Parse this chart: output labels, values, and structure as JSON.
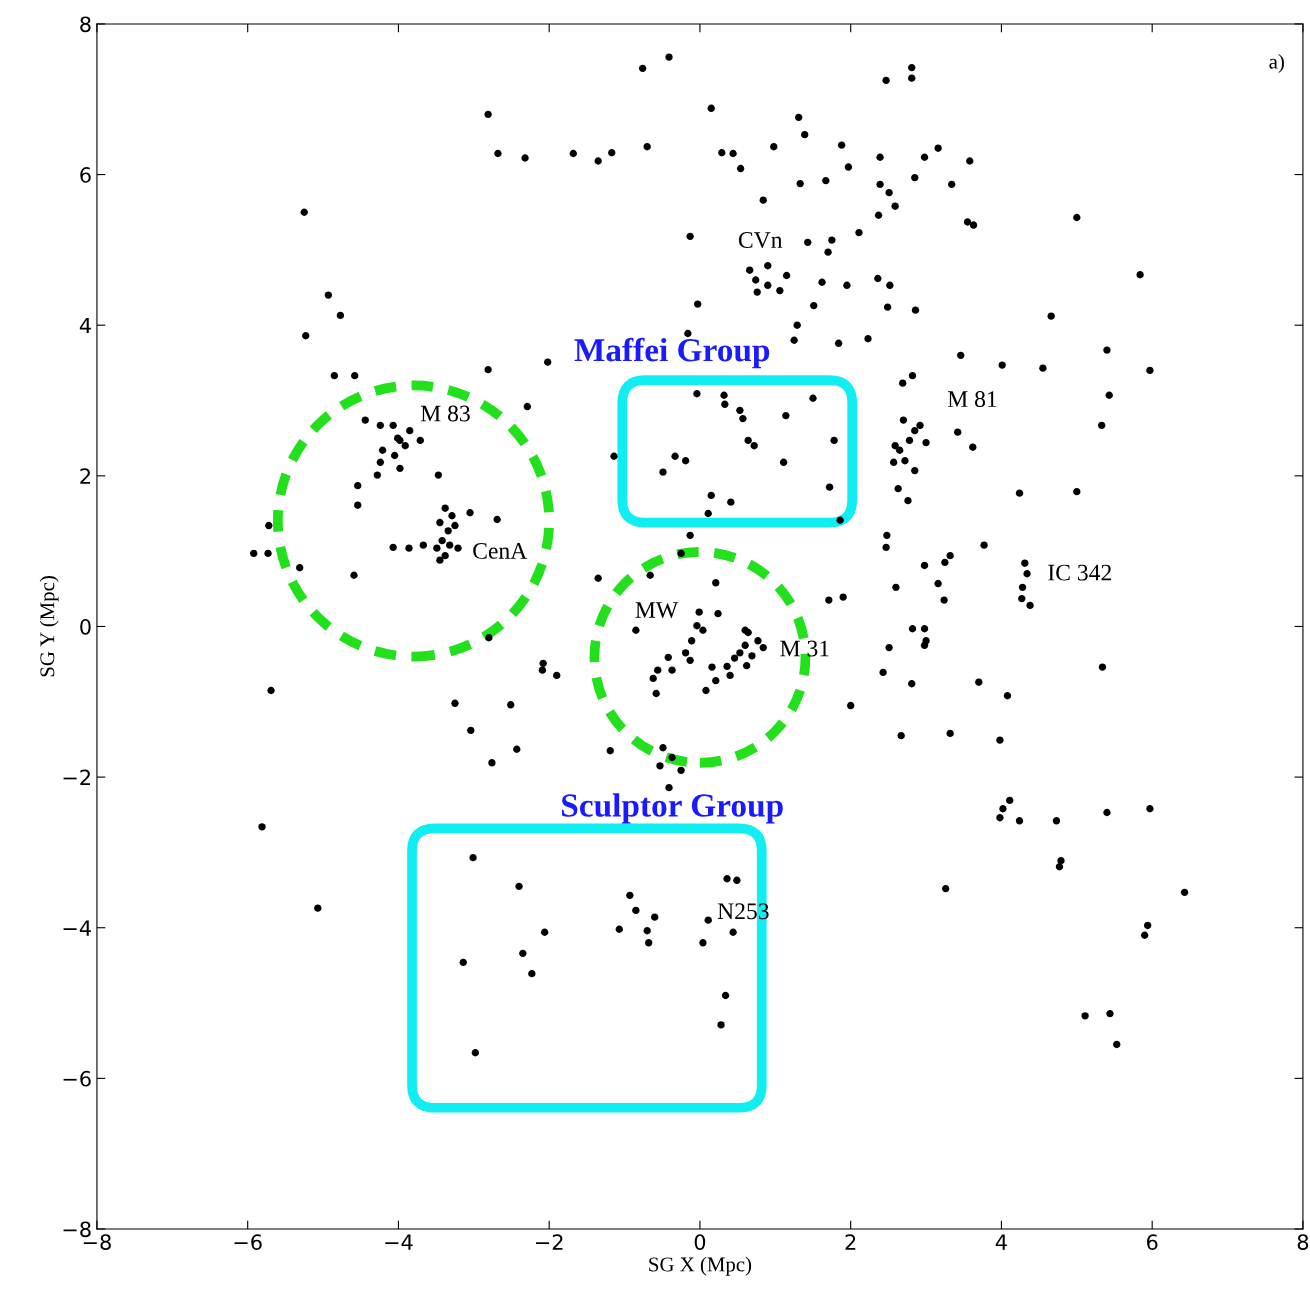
{
  "chart_data": {
    "type": "scatter",
    "xlabel": "SG X (Mpc)",
    "ylabel": "SG Y (Mpc)",
    "xlim": [
      -8,
      8
    ],
    "ylim": [
      -8,
      8
    ],
    "xticks": [
      {
        "value": -8,
        "label": "−8"
      },
      {
        "value": -6,
        "label": "−6"
      },
      {
        "value": -4,
        "label": "−4"
      },
      {
        "value": -2,
        "label": "−2"
      },
      0,
      2,
      4,
      6,
      8
    ],
    "yticks": [
      {
        "value": -8,
        "label": "−8"
      },
      {
        "value": -6,
        "label": "−6"
      },
      {
        "value": -4,
        "label": "−4"
      },
      {
        "value": -2,
        "label": "−2"
      },
      0,
      2,
      4,
      6,
      8
    ],
    "grid": false,
    "legend": false,
    "marker": "circle",
    "series": [
      {
        "color": "#000000",
        "x": [
          -0.76,
          -0.41,
          2.81,
          2.81,
          2.47,
          -2.81,
          -2.68,
          -2.32,
          -1.68,
          -1.35,
          -1.17,
          -0.7,
          0.15,
          0.29,
          0.44,
          0.54,
          0.84,
          1.31,
          1.39,
          0.98,
          1.33,
          1.67,
          1.88,
          1.97,
          2.39,
          2.39,
          2.51,
          2.85,
          2.59,
          2.37,
          2.11,
          2.98,
          3.16,
          3.34,
          3.58,
          3.55,
          3.63,
          5.0,
          5.84,
          -5.25,
          -4.93,
          -4.77,
          -5.23,
          -4.85,
          -4.58,
          -0.13,
          -0.03,
          -0.16,
          0.66,
          0.74,
          0.9,
          0.9,
          0.76,
          1.06,
          1.15,
          1.43,
          1.75,
          1.7,
          1.62,
          1.95,
          2.36,
          2.52,
          1.51,
          1.29,
          1.25,
          1.84,
          2.23,
          2.49,
          2.86,
          4.66,
          4.55,
          5.4,
          5.43,
          5.97,
          3.46,
          4.01,
          5.33,
          2.82,
          2.69,
          2.7,
          2.78,
          2.65,
          2.85,
          2.59,
          2.92,
          3.0,
          2.72,
          2.85,
          2.63,
          2.76,
          3.42,
          3.62,
          4.24,
          5.0,
          2.57,
          -0.04,
          0.32,
          0.33,
          0.53,
          0.57,
          1.14,
          1.5,
          0.64,
          0.72,
          1.78,
          1.11,
          1.72,
          -0.33,
          -0.19,
          -0.49,
          0.15,
          0.41,
          0.11,
          -1.14,
          1.86,
          -4.24,
          -4.07,
          -4.44,
          -3.98,
          -3.85,
          -3.91,
          -4.05,
          -4.21,
          -4.24,
          -3.98,
          -4.28,
          -4.01,
          -3.71,
          -2.29,
          -2.81,
          -2.02,
          -3.47,
          -4.54,
          -4.54,
          -3.05,
          -2.69,
          -3.38,
          -3.29,
          -3.45,
          -3.34,
          -3.25,
          -3.42,
          -3.32,
          -3.49,
          -3.21,
          -3.45,
          -3.38,
          -3.67,
          -3.86,
          -4.07,
          -5.72,
          -5.92,
          -5.73,
          -5.31,
          -4.59,
          -5.69,
          -2.8,
          -5.81,
          -5.07,
          -1.35,
          -0.85,
          -0.66,
          -0.25,
          -0.13,
          0.21,
          0.24,
          -0.01,
          -0.04,
          0.04,
          -0.11,
          -0.19,
          -0.13,
          -0.42,
          -0.56,
          -0.62,
          -0.58,
          -0.37,
          0.16,
          0.08,
          0.21,
          0.36,
          0.46,
          0.53,
          0.6,
          0.64,
          0.69,
          0.77,
          0.84,
          0.62,
          0.4,
          0.6,
          -0.49,
          -0.37,
          -0.53,
          -0.25,
          -0.41,
          -1.19,
          -2.08,
          -1.9,
          -2.09,
          -3.25,
          -3.04,
          -2.51,
          -2.43,
          -2.76,
          1.71,
          1.9,
          2.0,
          2.47,
          2.48,
          2.6,
          2.98,
          3.16,
          3.25,
          3.32,
          3.24,
          2.82,
          2.98,
          3.0,
          2.98,
          2.51,
          2.43,
          2.81,
          2.67,
          3.32,
          3.7,
          3.77,
          4.08,
          3.98,
          5.34,
          4.31,
          4.34,
          4.28,
          4.27,
          4.38,
          4.02,
          4.11,
          3.98,
          4.24,
          4.73,
          4.79,
          4.77,
          5.4,
          5.97,
          6.43,
          3.26,
          5.94,
          5.9,
          5.11,
          5.44,
          5.53,
          -3.01,
          -2.4,
          -2.35,
          -2.23,
          -2.06,
          -3.14,
          -2.98,
          -0.93,
          -0.85,
          -0.6,
          -1.07,
          -0.7,
          -0.68,
          0.11,
          0.04,
          0.36,
          0.49,
          0.44,
          0.34,
          0.28
        ],
        "values": [
          7.41,
          7.56,
          7.42,
          7.28,
          7.25,
          6.8,
          6.28,
          6.22,
          6.28,
          6.18,
          6.29,
          6.37,
          6.88,
          6.29,
          6.28,
          6.08,
          5.66,
          6.76,
          6.53,
          6.37,
          5.88,
          5.92,
          6.39,
          6.1,
          6.23,
          5.87,
          5.76,
          5.96,
          5.58,
          5.46,
          5.23,
          6.23,
          6.35,
          5.87,
          6.18,
          5.37,
          5.33,
          5.43,
          4.67,
          5.5,
          4.4,
          4.13,
          3.86,
          3.33,
          3.33,
          5.18,
          4.28,
          3.89,
          4.73,
          4.6,
          4.79,
          4.53,
          4.44,
          4.46,
          4.66,
          5.1,
          5.13,
          4.97,
          4.57,
          4.53,
          4.62,
          4.53,
          4.26,
          4.0,
          3.8,
          3.76,
          3.82,
          4.24,
          4.2,
          4.12,
          3.43,
          3.67,
          3.07,
          3.4,
          3.6,
          3.47,
          2.67,
          3.33,
          3.23,
          2.74,
          2.47,
          2.34,
          2.6,
          2.4,
          2.67,
          2.44,
          2.2,
          2.07,
          1.83,
          1.67,
          2.58,
          2.38,
          1.77,
          1.79,
          2.18,
          3.09,
          3.07,
          2.95,
          2.87,
          2.76,
          2.8,
          3.03,
          2.47,
          2.4,
          2.47,
          2.18,
          1.85,
          2.26,
          2.2,
          2.05,
          1.74,
          1.65,
          1.5,
          2.26,
          1.41,
          2.67,
          2.67,
          2.74,
          2.47,
          2.6,
          2.4,
          2.27,
          2.34,
          2.18,
          2.1,
          2.01,
          2.5,
          2.47,
          2.92,
          3.41,
          3.51,
          2.01,
          1.87,
          1.61,
          1.51,
          1.42,
          1.57,
          1.47,
          1.38,
          1.27,
          1.34,
          1.14,
          1.08,
          1.04,
          1.04,
          0.88,
          0.94,
          1.08,
          1.04,
          1.05,
          1.34,
          0.97,
          0.97,
          0.78,
          0.68,
          -0.85,
          -0.15,
          -2.66,
          -3.74,
          0.64,
          -0.05,
          0.68,
          0.97,
          1.21,
          0.58,
          0.17,
          0.19,
          0.01,
          -0.05,
          -0.19,
          -0.35,
          -0.45,
          -0.41,
          -0.58,
          -0.69,
          -0.89,
          -0.58,
          -0.54,
          -0.85,
          -0.72,
          -0.53,
          -0.42,
          -0.35,
          -0.25,
          -0.08,
          -0.39,
          -0.19,
          -0.28,
          -0.52,
          -0.65,
          -0.05,
          -1.61,
          -1.74,
          -1.85,
          -1.91,
          -2.14,
          -1.65,
          -0.49,
          -0.65,
          -0.58,
          -1.02,
          -1.38,
          -1.04,
          -1.63,
          -1.81,
          0.35,
          0.39,
          -1.05,
          1.05,
          1.21,
          0.52,
          0.81,
          0.57,
          0.85,
          0.94,
          0.35,
          -0.03,
          -0.03,
          -0.19,
          -0.25,
          -0.28,
          -0.61,
          -0.76,
          -1.45,
          -1.42,
          -0.74,
          1.08,
          -0.92,
          -1.51,
          -0.54,
          0.84,
          0.7,
          0.52,
          0.37,
          0.28,
          -2.42,
          -2.31,
          -2.54,
          -2.58,
          -2.58,
          -3.11,
          -3.19,
          -2.47,
          -2.42,
          -3.53,
          -3.48,
          -3.97,
          -4.1,
          -5.17,
          -5.14,
          -5.55,
          -3.07,
          -3.45,
          -4.34,
          -4.61,
          -4.06,
          -4.46,
          -5.66,
          -3.57,
          -3.77,
          -3.86,
          -4.02,
          -4.04,
          -4.2,
          -3.9,
          -4.2,
          -3.35,
          -3.37,
          -4.06,
          -4.9,
          -5.29
        ]
      }
    ],
    "annotations": [
      "CVn",
      "M 83",
      "CenA",
      "MW",
      "M 31",
      "M 81",
      "IC 342",
      "N253",
      "Maffei Group",
      "Sculptor Group",
      "a)"
    ]
  }
}
